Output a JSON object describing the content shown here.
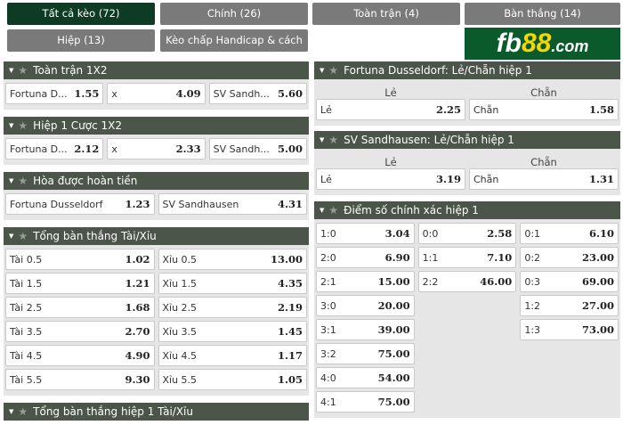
{
  "tabs": [
    "Tất cả kèo (72)",
    "Chính (26)",
    "Toàn trận (4)",
    "Bàn thắng (14)",
    "Hiệp (13)",
    "Kèo chấp Handicap & cách biệt (3)"
  ],
  "logo": "fb88.com",
  "left": [
    {
      "title": "Toàn trận 1X2",
      "cols": 3,
      "rows": [
        [
          [
            "Fortuna D...",
            "1.55"
          ],
          [
            "x",
            "4.09"
          ],
          [
            "SV Sandh...",
            "5.60"
          ]
        ]
      ]
    },
    {
      "title": "Hiệp 1 Cược 1X2",
      "cols": 3,
      "rows": [
        [
          [
            "Fortuna D...",
            "2.12"
          ],
          [
            "x",
            "2.33"
          ],
          [
            "SV Sandh...",
            "5.00"
          ]
        ]
      ]
    },
    {
      "title": "Hòa được hoàn tiền",
      "cols": 2,
      "rows": [
        [
          [
            "Fortuna Dusseldorf",
            "1.23"
          ],
          [
            "SV Sandhausen",
            "4.31"
          ]
        ]
      ]
    },
    {
      "title": "Tổng bàn thắng Tài/Xỉu",
      "cols": 2,
      "rows": [
        [
          [
            "Tài 0.5",
            "1.02"
          ],
          [
            "Xỉu 0.5",
            "13.00"
          ]
        ],
        [
          [
            "Tài 1.5",
            "1.21"
          ],
          [
            "Xỉu 1.5",
            "4.35"
          ]
        ],
        [
          [
            "Tài 2.5",
            "1.68"
          ],
          [
            "Xỉu 2.5",
            "2.19"
          ]
        ],
        [
          [
            "Tài 3.5",
            "2.70"
          ],
          [
            "Xỉu 3.5",
            "1.45"
          ]
        ],
        [
          [
            "Tài 4.5",
            "4.90"
          ],
          [
            "Xỉu 4.5",
            "1.17"
          ]
        ],
        [
          [
            "Tài 5.5",
            "9.30"
          ],
          [
            "Xỉu 5.5",
            "1.05"
          ]
        ]
      ]
    },
    {
      "title": "Tổng bàn thắng hiệp 1 Tài/Xỉu",
      "cols": 2,
      "rows": []
    }
  ],
  "right": [
    {
      "title": "Fortuna Dusseldorf: Lẻ/Chẵn hiệp 1",
      "sub": [
        "Lẻ",
        "Chẵn"
      ],
      "cols": 2,
      "rows": [
        [
          [
            "Lẻ",
            "2.25"
          ],
          [
            "Chẵn",
            "1.58"
          ]
        ]
      ]
    },
    {
      "title": "SV Sandhausen: Lẻ/Chẵn hiệp 1",
      "sub": [
        "Lẻ",
        "Chẵn"
      ],
      "cols": 2,
      "rows": [
        [
          [
            "Lẻ",
            "3.19"
          ],
          [
            "Chẵn",
            "1.31"
          ]
        ]
      ]
    },
    {
      "title": "Điểm số chính xác hiệp 1",
      "cols": 3,
      "rows": [
        [
          [
            "1:0",
            "3.04"
          ],
          [
            "0:0",
            "2.58"
          ],
          [
            "0:1",
            "6.10"
          ]
        ],
        [
          [
            "2:0",
            "6.90"
          ],
          [
            "1:1",
            "7.10"
          ],
          [
            "0:2",
            "23.00"
          ]
        ],
        [
          [
            "2:1",
            "15.00"
          ],
          [
            "2:2",
            "46.00"
          ],
          [
            "0:3",
            "69.00"
          ]
        ],
        [
          [
            "3:0",
            "20.00"
          ],
          null,
          [
            "1:2",
            "27.00"
          ]
        ],
        [
          [
            "3:1",
            "39.00"
          ],
          null,
          [
            "1:3",
            "73.00"
          ]
        ],
        [
          [
            "3:2",
            "75.00"
          ],
          null,
          null
        ],
        [
          [
            "4:0",
            "54.00"
          ],
          null,
          null
        ],
        [
          [
            "4:1",
            "75.00"
          ],
          null,
          null
        ]
      ]
    }
  ]
}
